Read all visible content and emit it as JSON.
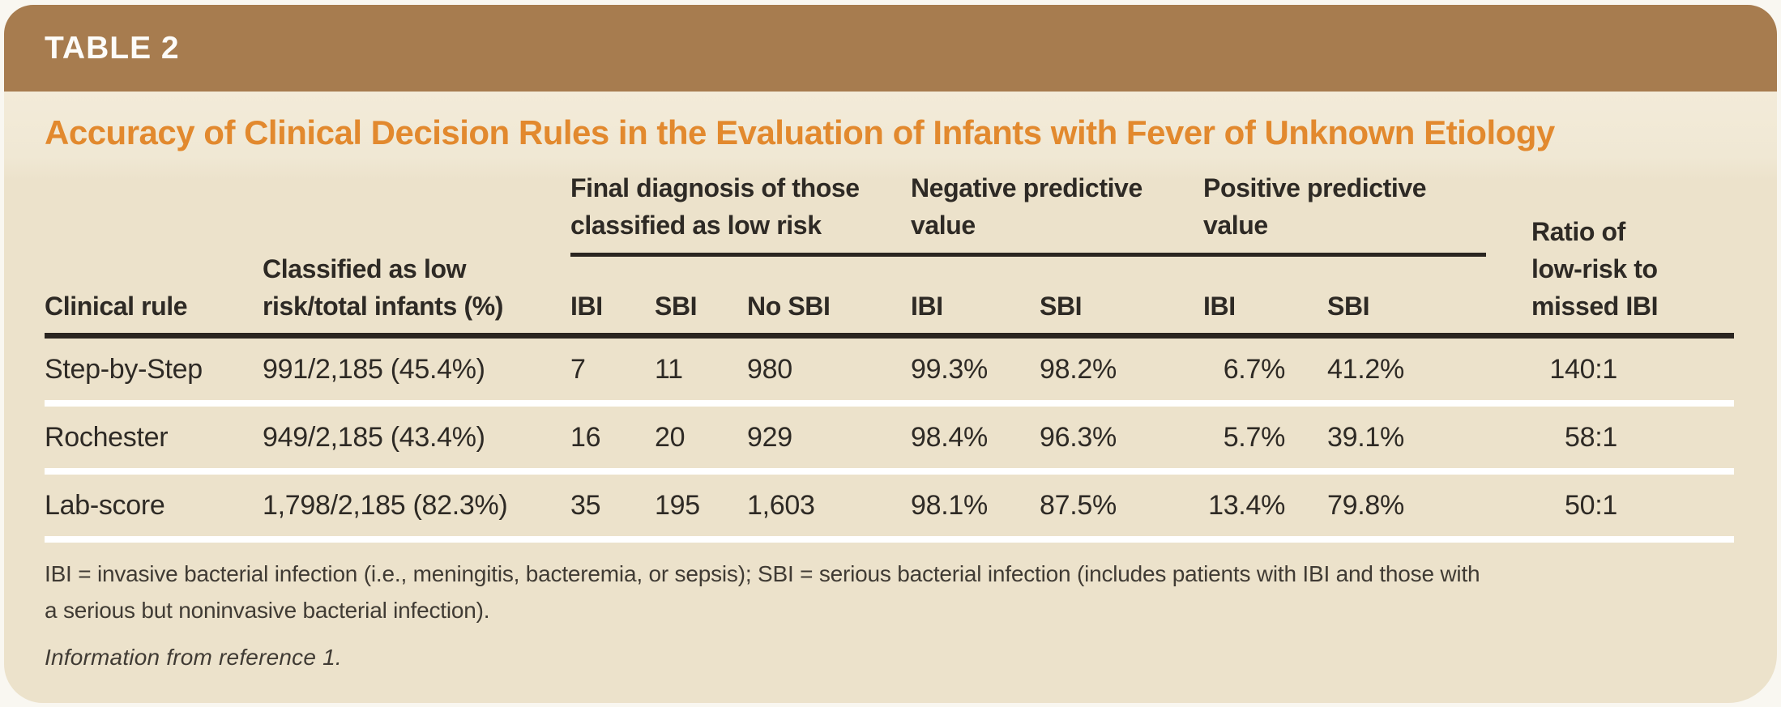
{
  "table_label": "TABLE 2",
  "title": "Accuracy of Clinical Decision Rules in the Evaluation of Infants with Fever of Unknown Etiology",
  "header": {
    "clinical_rule": "Clinical rule",
    "classified": "Classified as low\nrisk/total infants (%)",
    "groups": [
      {
        "label": "Final diagnosis of those\nclassified as low risk",
        "subs": [
          "IBI",
          "SBI",
          "No SBI"
        ]
      },
      {
        "label": "Negative predictive\nvalue",
        "subs": [
          "IBI",
          "SBI"
        ]
      },
      {
        "label": "Positive predictive\nvalue",
        "subs": [
          "IBI",
          "SBI"
        ]
      }
    ],
    "ratio": "Ratio of\nlow-risk to\nmissed IBI"
  },
  "rows": [
    {
      "clinical_rule": "Step-by-Step",
      "classified": "991/2,185 (45.4%)",
      "final_ibi": "7",
      "final_sbi": "11",
      "final_no_sbi": "980",
      "npv_ibi": "99.3%",
      "npv_sbi": "98.2%",
      "ppv_ibi": "6.7%",
      "ppv_sbi": "41.2%",
      "ratio": "140:1"
    },
    {
      "clinical_rule": "Rochester",
      "classified": "949/2,185 (43.4%)",
      "final_ibi": "16",
      "final_sbi": "20",
      "final_no_sbi": "929",
      "npv_ibi": "98.4%",
      "npv_sbi": "96.3%",
      "ppv_ibi": "5.7%",
      "ppv_sbi": "39.1%",
      "ratio": "58:1"
    },
    {
      "clinical_rule": "Lab-score",
      "classified": "1,798/2,185 (82.3%)",
      "final_ibi": "35",
      "final_sbi": "195",
      "final_no_sbi": "1,603",
      "npv_ibi": "98.1%",
      "npv_sbi": "87.5%",
      "ppv_ibi": "13.4%",
      "ppv_sbi": "79.8%",
      "ratio": "50:1"
    }
  ],
  "footnotes": {
    "abbreviations": "IBI = invasive bacterial infection (i.e., meningitis, bacteremia, or sepsis); SBI = serious bacterial infection (includes patients with IBI and those with\na serious but noninvasive bacterial infection).",
    "source": "Information from reference 1."
  },
  "colors": {
    "banner_brown": "#a77c4f",
    "title_orange": "#e2892e",
    "body_cream": "#ece2cb",
    "rule_dark": "#2a2520",
    "row_separator": "#ffffff",
    "text": "#2e2a25"
  }
}
